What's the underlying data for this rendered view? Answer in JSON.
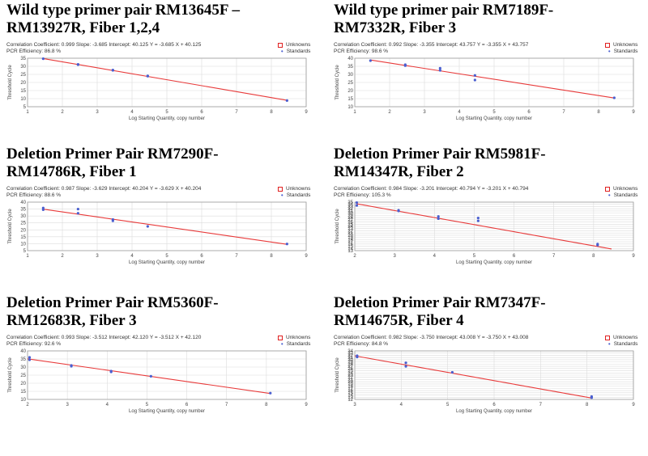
{
  "colors": {
    "fit": "#e83a3a",
    "standards": "#4a5fd0",
    "unknowns": "#e02020",
    "grid": "#dcdcdc"
  },
  "legend": {
    "unknowns": "Unknowns",
    "standards": "Standards"
  },
  "chart_data": [
    {
      "type": "scatter",
      "title": "Wild type primer pair RM13645F –\nRM13927R, Fiber 1,2,4",
      "stats_line1": "Correlation Coefficient: 0.999   Slope: -3.685   Intercept: 40.125   Y = -3.685 X + 40.125",
      "stats_line2": "PCR Efficiency: 86.8 %",
      "xlabel": "Log Starting Quantity, copy number",
      "ylabel": "Threshold Cycle",
      "xlim": [
        1,
        9
      ],
      "ylim": [
        5,
        35
      ],
      "xticks": [
        1,
        2,
        3,
        4,
        5,
        6,
        7,
        8,
        9
      ],
      "yticks": [
        5,
        10,
        15,
        20,
        25,
        30,
        35
      ],
      "slope": -3.685,
      "intercept": 40.125,
      "fit_x": [
        1.45,
        8.45
      ],
      "standards": {
        "x": [
          1.45,
          2.45,
          2.45,
          3.45,
          3.45,
          4.45,
          4.45,
          8.45
        ],
        "y": [
          34.7,
          31.0,
          31.2,
          27.5,
          27.7,
          24.1,
          23.9,
          8.8
        ]
      }
    },
    {
      "type": "scatter",
      "title": "Wild type primer pair RM7189F-\nRM7332R, Fiber 3",
      "stats_line1": "Correlation Coefficient: 0.992   Slope: -3.355   Intercept: 43.757   Y = -3.355 X + 43.757",
      "stats_line2": "PCR Efficiency: 98.6 %",
      "xlabel": "Log Starting Quantity, copy number",
      "ylabel": "Threshold Cycle",
      "xlim": [
        1,
        9
      ],
      "ylim": [
        10,
        40
      ],
      "xticks": [
        1,
        2,
        3,
        4,
        5,
        6,
        7,
        8,
        9
      ],
      "yticks": [
        10,
        15,
        20,
        25,
        30,
        35,
        40
      ],
      "slope": -3.355,
      "intercept": 43.757,
      "fit_x": [
        1.45,
        8.45
      ],
      "standards": {
        "x": [
          1.45,
          2.45,
          2.45,
          3.45,
          3.45,
          4.45,
          4.45,
          8.45
        ],
        "y": [
          38.5,
          36.0,
          35.4,
          33.8,
          32.5,
          29.4,
          26.5,
          15.5
        ]
      }
    },
    {
      "type": "scatter",
      "title": "Deletion Primer Pair RM7290F-\nRM14786R, Fiber 1",
      "stats_line1": "Correlation Coefficient: 0.987   Slope: -3.629   Intercept: 40.204   Y = -3.629 X + 40.204",
      "stats_line2": "PCR Efficiency: 88.6 %",
      "xlabel": "Log Starting Quantity, copy number",
      "ylabel": "Threshold Cycle",
      "xlim": [
        1,
        9
      ],
      "ylim": [
        5,
        40
      ],
      "xticks": [
        1,
        2,
        3,
        4,
        5,
        6,
        7,
        8,
        9
      ],
      "yticks": [
        5,
        10,
        15,
        20,
        25,
        30,
        35,
        40
      ],
      "slope": -3.629,
      "intercept": 40.204,
      "fit_x": [
        1.45,
        8.45
      ],
      "standards": {
        "x": [
          1.45,
          1.45,
          2.45,
          2.45,
          3.45,
          3.45,
          4.45,
          8.45
        ],
        "y": [
          35.8,
          34.5,
          35.0,
          32.0,
          27.5,
          26.5,
          22.5,
          9.8
        ]
      }
    },
    {
      "type": "scatter",
      "title": "Deletion Primer Pair RM5981F-\nRM14347R, Fiber 2",
      "stats_line1": "Correlation Coefficient: 0.984   Slope: -3.201   Intercept: 40.794   Y = -3.201 X + 40.794",
      "stats_line2": "PCR Efficiency: 105.3 %",
      "xlabel": "Log Starting Quantity, copy number",
      "ylabel": "Threshold Cycle",
      "xlim": [
        2,
        9
      ],
      "ylim": [
        13,
        35
      ],
      "xticks": [
        2,
        3,
        4,
        5,
        6,
        7,
        8,
        9
      ],
      "yticks": [
        13,
        14,
        15,
        16,
        17,
        18,
        19,
        20,
        21,
        22,
        23,
        24,
        25,
        26,
        27,
        28,
        29,
        30,
        31,
        32,
        33,
        34,
        35
      ],
      "slope": -3.201,
      "intercept": 40.794,
      "fit_x": [
        2.05,
        8.45
      ],
      "standards": {
        "x": [
          2.05,
          2.05,
          3.1,
          3.1,
          4.1,
          4.1,
          5.1,
          5.1,
          8.1,
          8.1
        ],
        "y": [
          34.8,
          33.5,
          31.3,
          31.0,
          28.5,
          27.5,
          26.5,
          27.8,
          16.0,
          15.5
        ]
      }
    },
    {
      "type": "scatter",
      "title": "Deletion Primer Pair RM5360F-\nRM12683R, Fiber 3",
      "stats_line1": "Correlation Coefficient: 0.993   Slope: -3.512   Intercept: 42.120   Y = -3.512 X + 42.120",
      "stats_line2": "PCR Efficiency: 92.6 %",
      "xlabel": "Log Starting Quantity, copy number",
      "ylabel": "Threshold Cycle",
      "xlim": [
        2,
        9
      ],
      "ylim": [
        10,
        40
      ],
      "xticks": [
        2,
        3,
        4,
        5,
        6,
        7,
        8,
        9
      ],
      "yticks": [
        10,
        15,
        20,
        25,
        30,
        35,
        40
      ],
      "slope": -3.512,
      "intercept": 42.12,
      "fit_x": [
        2.0,
        8.1
      ],
      "standards": {
        "x": [
          2.05,
          2.05,
          3.1,
          3.1,
          4.1,
          4.1,
          5.1,
          8.1
        ],
        "y": [
          36.0,
          34.5,
          31.0,
          30.5,
          27.5,
          27.0,
          24.3,
          13.9
        ]
      }
    },
    {
      "type": "scatter",
      "title": "Deletion Primer Pair RM7347F-\nRM14675R, Fiber 4",
      "stats_line1": "Correlation Coefficient: 0.982   Slope: -3.750   Intercept: 43.008   Y = -3.750 X + 43.008",
      "stats_line2": "PCR Efficiency: 84.8 %",
      "xlabel": "Log Starting Quantity, copy number",
      "ylabel": "Threshold Cycle",
      "xlim": [
        3,
        9
      ],
      "ylim": [
        12,
        34
      ],
      "xticks": [
        3,
        4,
        5,
        6,
        7,
        8,
        9
      ],
      "yticks": [
        12,
        13,
        14,
        15,
        16,
        17,
        18,
        19,
        20,
        21,
        22,
        23,
        24,
        25,
        26,
        27,
        28,
        29,
        30,
        31,
        32,
        33,
        34
      ],
      "slope": -3.75,
      "intercept": 43.008,
      "fit_x": [
        3.0,
        8.1
      ],
      "standards": {
        "x": [
          3.05,
          3.05,
          4.1,
          4.1,
          5.1,
          8.1,
          8.1
        ],
        "y": [
          31.8,
          31.2,
          28.6,
          27.0,
          24.3,
          13.3,
          12.8
        ]
      }
    }
  ]
}
